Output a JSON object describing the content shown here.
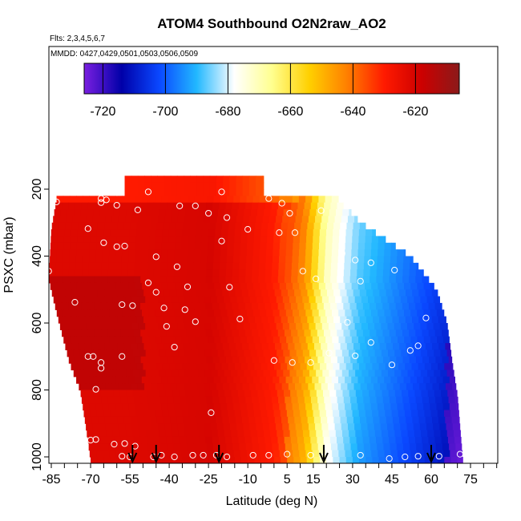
{
  "chart_data": {
    "type": "heatmap",
    "title": "ATOM4 Southbound O2N2raw_AO2",
    "subtitle": "Flts: 2,3,4,5,6,7",
    "annotation": "MMDD: 0427,0429,0501,0503,0506,0509",
    "xlabel": "Latitude (deg N)",
    "ylabel": "PSXC (mbar)",
    "xlim": [
      -87,
      83
    ],
    "ylim": [
      1010,
      80
    ],
    "x_ticks": [
      -85,
      -70,
      -55,
      -40,
      -25,
      -10,
      5,
      15,
      30,
      45,
      60,
      75
    ],
    "y_ticks": [
      200,
      400,
      600,
      800,
      1000
    ],
    "colorbar": {
      "ticks": [
        -720,
        -700,
        -680,
        -660,
        -640,
        -620
      ],
      "range": [
        -726,
        -606
      ],
      "colors": [
        "#7a1fe0",
        "#0000a8",
        "#0a48ff",
        "#22b8ff",
        "#ffffff",
        "#ffff90",
        "#ffd000",
        "#ff8000",
        "#ff1a00",
        "#cc0000",
        "#8b1a1a"
      ]
    },
    "arrows_latitude": [
      -54,
      -45,
      -21,
      19,
      60
    ],
    "field_description": "Values near -620 to -640 in the Southern Hemisphere and tropics; transition to -660 near 15-20N; values near -690 to -720 north of 30N.",
    "sample_points": [
      {
        "lat": -60,
        "p": 210
      },
      {
        "lat": -48,
        "p": 208
      },
      {
        "lat": -20,
        "p": 208
      },
      {
        "lat": -83,
        "p": 238
      },
      {
        "lat": -66,
        "p": 240
      },
      {
        "lat": -66,
        "p": 228
      },
      {
        "lat": -64,
        "p": 232
      },
      {
        "lat": -60,
        "p": 248
      },
      {
        "lat": -52,
        "p": 262
      },
      {
        "lat": -36,
        "p": 250
      },
      {
        "lat": -30,
        "p": 250
      },
      {
        "lat": -25,
        "p": 272
      },
      {
        "lat": -18,
        "p": 285
      },
      {
        "lat": -2,
        "p": 228
      },
      {
        "lat": 3,
        "p": 242
      },
      {
        "lat": 6,
        "p": 272
      },
      {
        "lat": 18,
        "p": 264
      },
      {
        "lat": 37,
        "p": 285
      },
      {
        "lat": -71,
        "p": 318
      },
      {
        "lat": -65,
        "p": 360
      },
      {
        "lat": -60,
        "p": 372
      },
      {
        "lat": -57,
        "p": 370
      },
      {
        "lat": -45,
        "p": 402
      },
      {
        "lat": -37,
        "p": 432
      },
      {
        "lat": -20,
        "p": 355
      },
      {
        "lat": -10,
        "p": 320
      },
      {
        "lat": 2,
        "p": 330
      },
      {
        "lat": 8,
        "p": 330
      },
      {
        "lat": 26,
        "p": 392
      },
      {
        "lat": 31,
        "p": 412
      },
      {
        "lat": 37,
        "p": 420
      },
      {
        "lat": 56,
        "p": 405
      },
      {
        "lat": 63,
        "p": 290
      },
      {
        "lat": -86,
        "p": 445
      },
      {
        "lat": -48,
        "p": 480
      },
      {
        "lat": -45,
        "p": 508
      },
      {
        "lat": -33,
        "p": 492
      },
      {
        "lat": 11,
        "p": 445
      },
      {
        "lat": 16,
        "p": 468
      },
      {
        "lat": 33,
        "p": 475
      },
      {
        "lat": 46,
        "p": 442
      },
      {
        "lat": -76,
        "p": 538
      },
      {
        "lat": -58,
        "p": 545
      },
      {
        "lat": -54,
        "p": 548
      },
      {
        "lat": -42,
        "p": 555
      },
      {
        "lat": -34,
        "p": 560
      },
      {
        "lat": -13,
        "p": 588
      },
      {
        "lat": -17,
        "p": 493
      },
      {
        "lat": -30,
        "p": 596
      },
      {
        "lat": 28,
        "p": 598
      },
      {
        "lat": -41,
        "p": 610
      },
      {
        "lat": 58,
        "p": 585
      },
      {
        "lat": 71,
        "p": 620
      },
      {
        "lat": -71,
        "p": 700
      },
      {
        "lat": -69,
        "p": 700
      },
      {
        "lat": -66,
        "p": 718
      },
      {
        "lat": -66,
        "p": 735
      },
      {
        "lat": -68,
        "p": 798
      },
      {
        "lat": -58,
        "p": 700
      },
      {
        "lat": -38,
        "p": 672
      },
      {
        "lat": 0,
        "p": 712
      },
      {
        "lat": 7,
        "p": 718
      },
      {
        "lat": 14,
        "p": 718
      },
      {
        "lat": 21,
        "p": 690
      },
      {
        "lat": 31,
        "p": 698
      },
      {
        "lat": 37,
        "p": 658
      },
      {
        "lat": 45,
        "p": 725
      },
      {
        "lat": 52,
        "p": 682
      },
      {
        "lat": 55,
        "p": 668
      },
      {
        "lat": -24,
        "p": 868
      },
      {
        "lat": -72,
        "p": 962
      },
      {
        "lat": -70,
        "p": 950
      },
      {
        "lat": -68,
        "p": 948
      },
      {
        "lat": -61,
        "p": 962
      },
      {
        "lat": -57,
        "p": 960
      },
      {
        "lat": -53,
        "p": 968
      },
      {
        "lat": -43,
        "p": 995
      },
      {
        "lat": -46,
        "p": 1000
      },
      {
        "lat": -38,
        "p": 1000
      },
      {
        "lat": -31,
        "p": 995
      },
      {
        "lat": -27,
        "p": 995
      },
      {
        "lat": -22,
        "p": 995
      },
      {
        "lat": -18,
        "p": 1000
      },
      {
        "lat": -8,
        "p": 995
      },
      {
        "lat": -2,
        "p": 995
      },
      {
        "lat": 5,
        "p": 992
      },
      {
        "lat": 14,
        "p": 995
      },
      {
        "lat": 19,
        "p": 1000
      },
      {
        "lat": 33,
        "p": 995
      },
      {
        "lat": 44,
        "p": 1005
      },
      {
        "lat": 50,
        "p": 1000
      },
      {
        "lat": 55,
        "p": 998
      },
      {
        "lat": 63,
        "p": 998
      },
      {
        "lat": 71,
        "p": 992
      },
      {
        "lat": -55,
        "p": 1000
      },
      {
        "lat": -58,
        "p": 998
      }
    ]
  }
}
